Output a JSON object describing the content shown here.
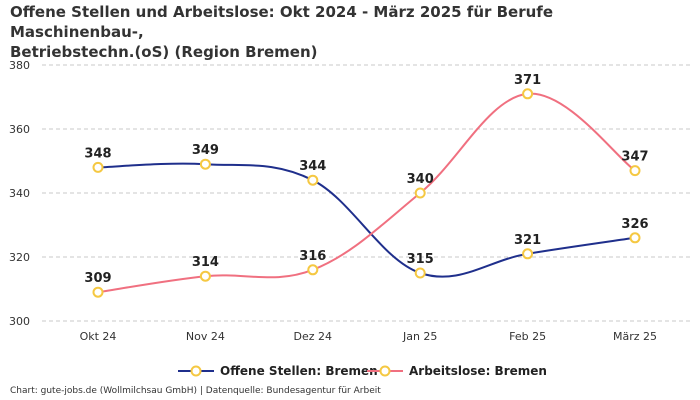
{
  "chart_data": {
    "type": "line",
    "title_line1": "Offene Stellen und Arbeitslose: Okt 2024 - März 2025 für Berufe Maschinenbau-,",
    "title_line2": "Betriebstechn.(oS) (Region Bremen)",
    "categories": [
      "Okt 24",
      "Nov 24",
      "Dez 24",
      "Jan 25",
      "Feb 25",
      "März 25"
    ],
    "ylim": [
      300,
      380
    ],
    "yticks": [
      300,
      320,
      340,
      360,
      380
    ],
    "grid": true,
    "legend_position": "bottom",
    "series": [
      {
        "name": "Offene Stellen: Bremen",
        "values": [
          348,
          349,
          344,
          315,
          321,
          326
        ],
        "color": "#1f2f8c"
      },
      {
        "name": "Arbeitslose: Bremen",
        "values": [
          309,
          314,
          316,
          340,
          371,
          347
        ],
        "color": "#f07080"
      }
    ],
    "marker_color": "#f5c842"
  },
  "footer": "Chart: gute-jobs.de (Wollmilchsau GmbH) | Datenquelle: Bundesagentur für Arbeit"
}
